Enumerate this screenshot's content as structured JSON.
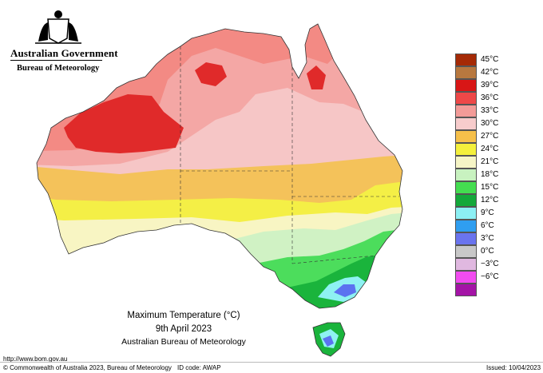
{
  "header": {
    "government": "Australian Government",
    "bureau": "Bureau of Meteorology",
    "logo_icon": "commonwealth-coat-of-arms"
  },
  "map": {
    "title": "Maximum Temperature (°C)",
    "date": "9th April 2023",
    "source": "Australian Bureau of Meteorology",
    "colors": {
      "c42": "#e02a2a",
      "c39": "#ef5a5a",
      "c36": "#f38a84",
      "c33": "#f4a7a5",
      "c30": "#f6c6c6",
      "c27": "#f4c25a",
      "c24": "#f4ef46",
      "c21": "#f8f5c3",
      "c18": "#d0f2c4",
      "c15": "#4cdd5c",
      "c12": "#1ab43c",
      "c9": "#8ef2f2",
      "c6": "#5b72f0",
      "c3": "#b0b0d8"
    }
  },
  "legend": {
    "items": [
      {
        "label": "45°C",
        "color": "#a52a06"
      },
      {
        "label": "42°C",
        "color": "#b8783f"
      },
      {
        "label": "39°C",
        "color": "#d81616"
      },
      {
        "label": "36°C",
        "color": "#ee4848"
      },
      {
        "label": "33°C",
        "color": "#f39b98"
      },
      {
        "label": "30°C",
        "color": "#f7cccc"
      },
      {
        "label": "27°C",
        "color": "#f6c04a"
      },
      {
        "label": "24°C",
        "color": "#f4f03c"
      },
      {
        "label": "21°C",
        "color": "#f6f5c6"
      },
      {
        "label": "18°C",
        "color": "#c8f2c0"
      },
      {
        "label": "15°C",
        "color": "#44dd50"
      },
      {
        "label": "12°C",
        "color": "#14a83a"
      },
      {
        "label": "9°C",
        "color": "#8cf0f4"
      },
      {
        "label": "6°C",
        "color": "#2f9ef0"
      },
      {
        "label": "3°C",
        "color": "#6a74ee"
      },
      {
        "label": "0°C",
        "color": "#c8c8c8"
      },
      {
        "label": "−3°C",
        "color": "#e0b8e0"
      },
      {
        "label": "−6°C",
        "color": "#f24cf0"
      },
      {
        "label": "",
        "color": "#a414a6"
      }
    ]
  },
  "footer": {
    "url": "http://www.bom.gov.au",
    "copyright": "© Commonwealth of Australia 2023, Bureau of Meteorology",
    "id_code": "ID code: AWAP",
    "issued": "Issued: 10/04/2023"
  }
}
